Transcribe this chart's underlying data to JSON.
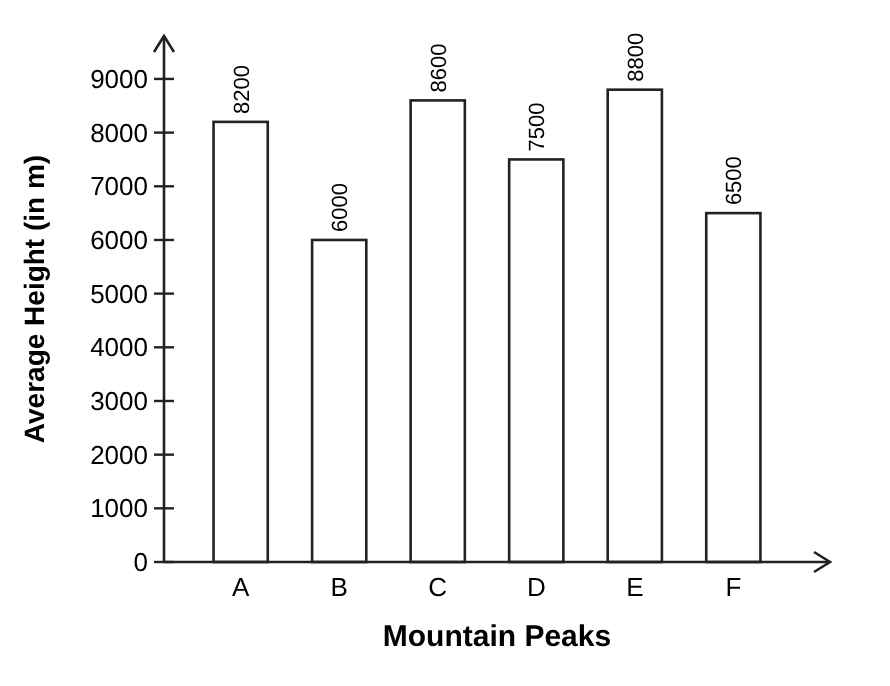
{
  "chart_data": {
    "type": "bar",
    "xlabel": "Mountain Peaks",
    "ylabel": "Average Height (in m)",
    "categories": [
      "A",
      "B",
      "C",
      "D",
      "E",
      "F"
    ],
    "values": [
      8200,
      6000,
      8600,
      7500,
      8800,
      6500
    ],
    "color": "#ffffff",
    "ylim": [
      0,
      9800
    ],
    "yticks": [
      0,
      1000,
      2000,
      3000,
      4000,
      5000,
      6000,
      7000,
      8000,
      9000
    ],
    "data_labels": true,
    "grid": false
  }
}
